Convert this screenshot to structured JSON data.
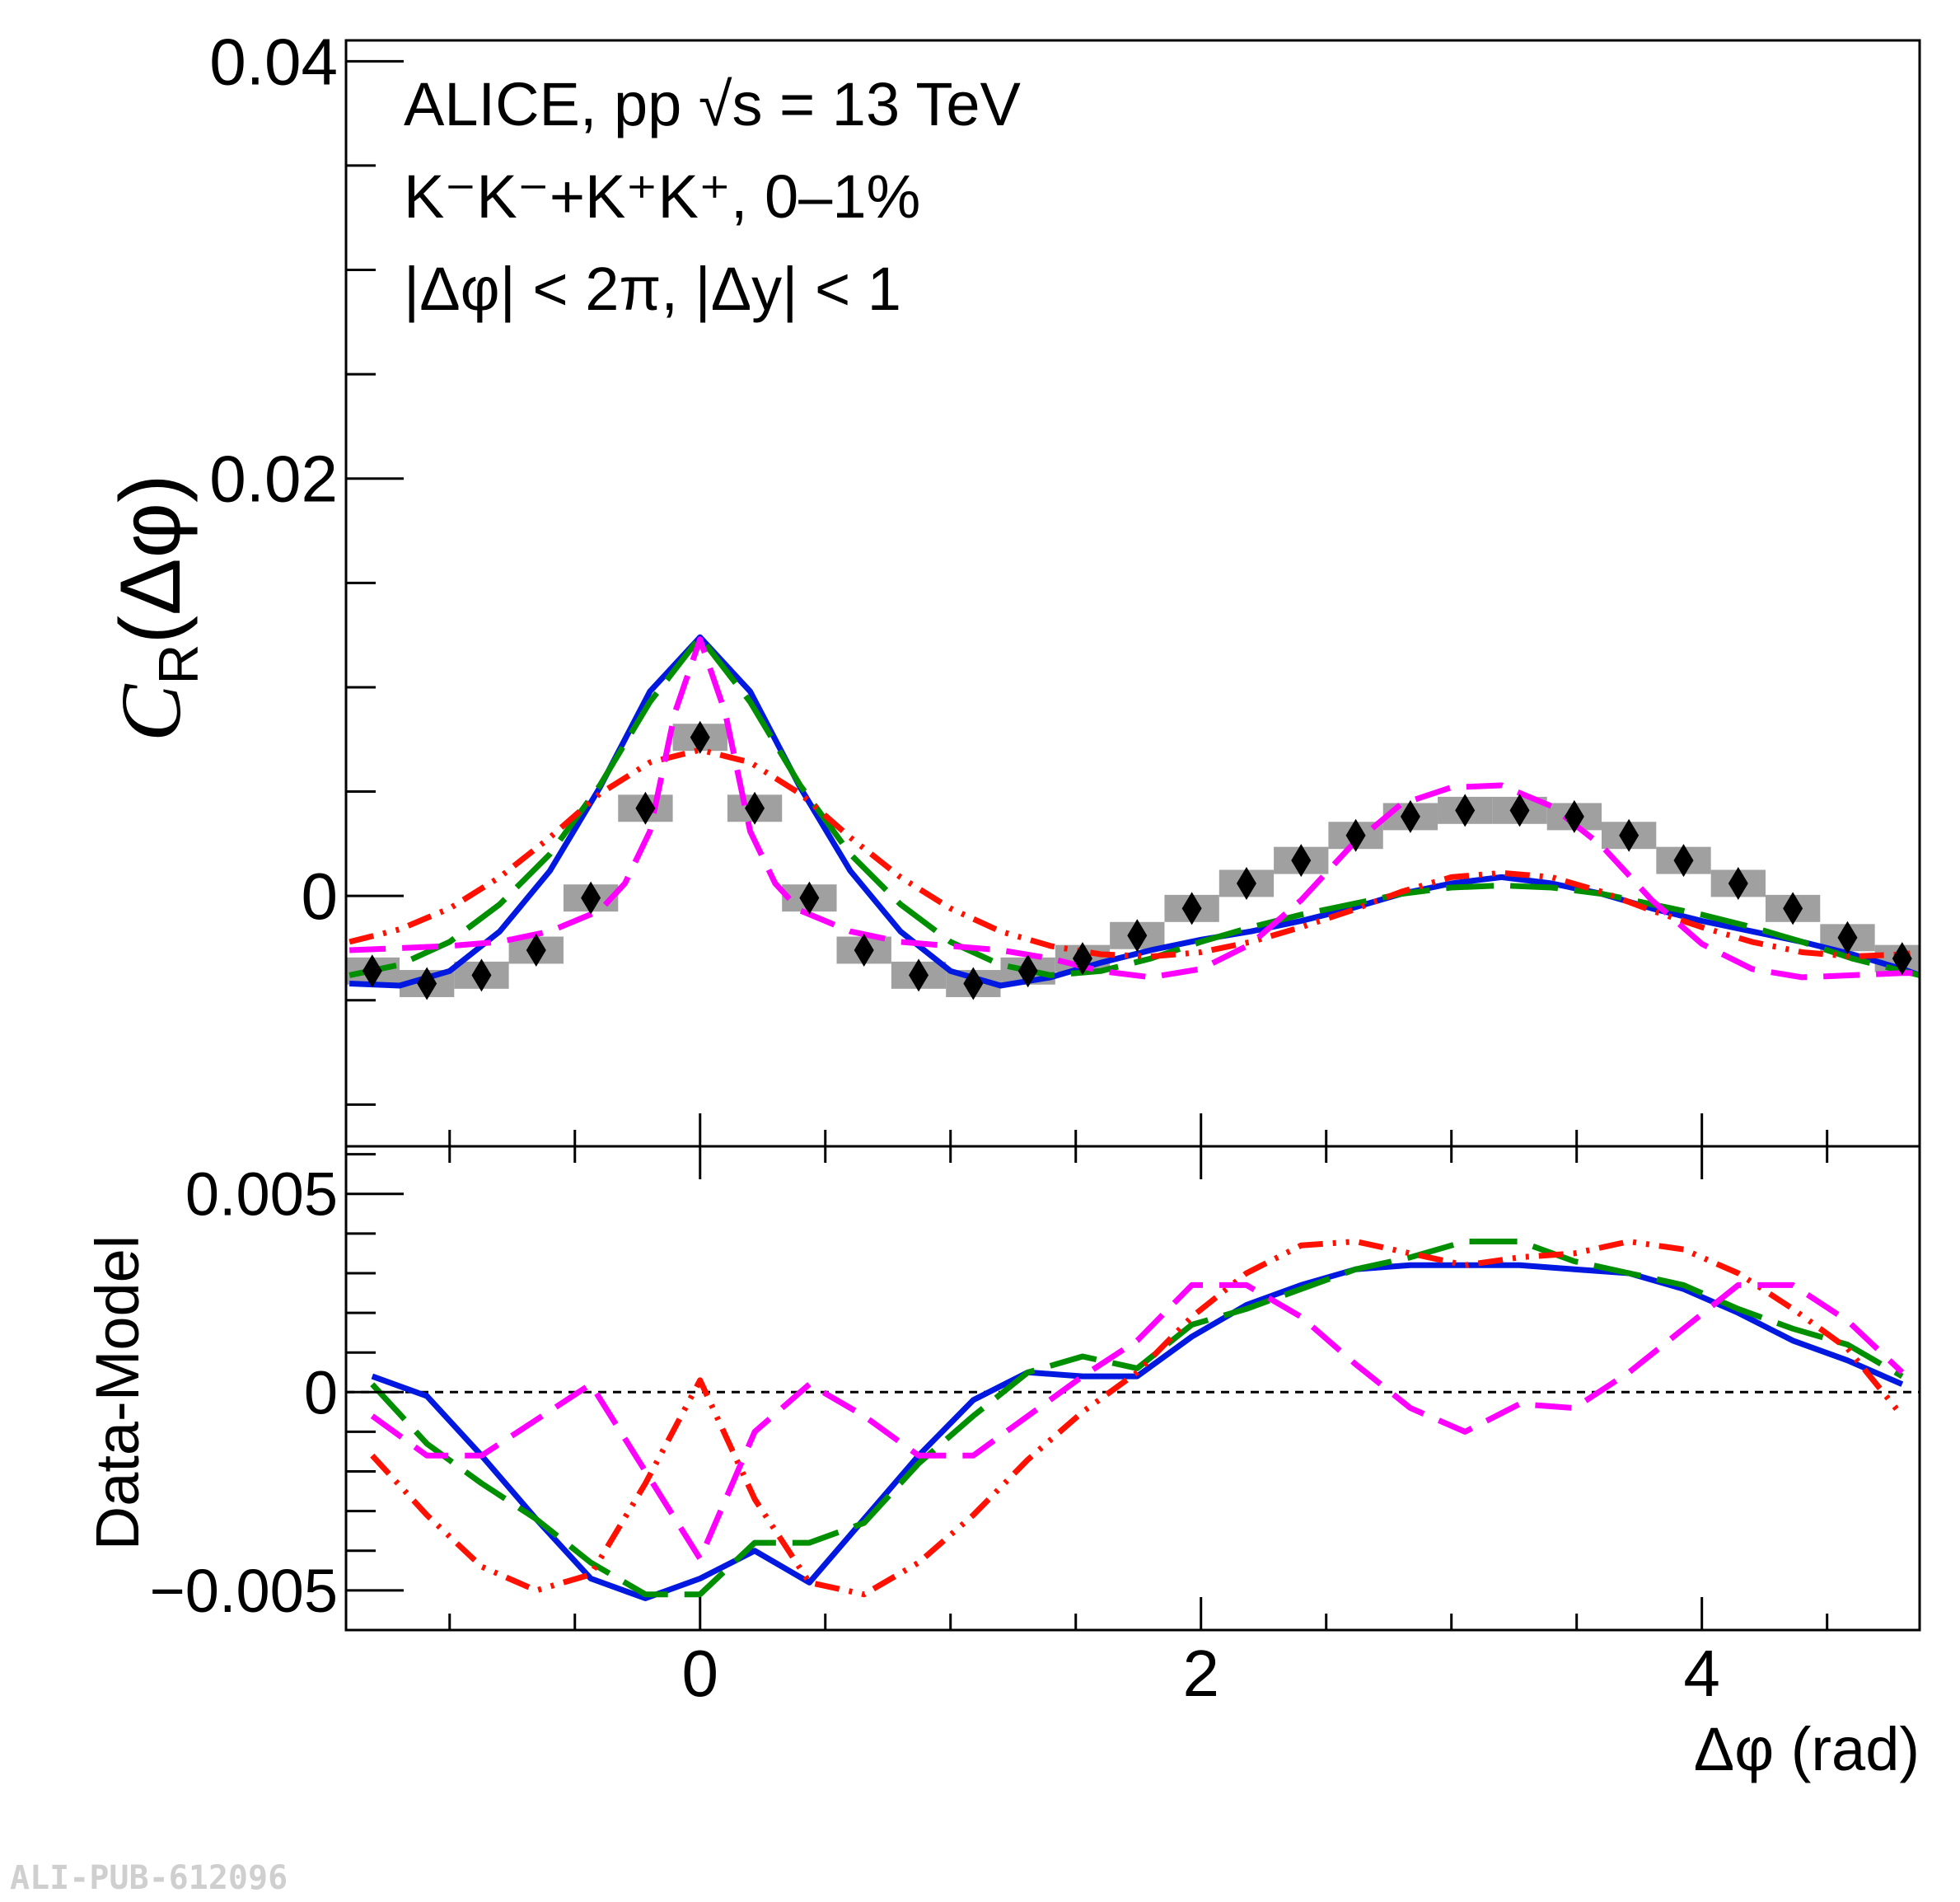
{
  "figure_id": "ALI-PUB-612096",
  "chart_data": [
    {
      "type": "scatter",
      "panel": "upper",
      "title_lines": [
        "ALICE, pp √s = 13 TeV",
        "K⁻K⁻+K⁺K⁺, 0–1%",
        "|Δφ| < 2π, |Δy| < 1"
      ],
      "ylabel_main": "C",
      "ylabel_sub": "R",
      "ylabel_arg": "(Δφ)",
      "xlim": [
        -1.4137,
        4.8695
      ],
      "ylim": [
        -0.012,
        0.041
      ],
      "y_ticks": [
        0.04,
        0.02,
        0
      ],
      "y_tick_labels": [
        "0.04",
        "0.02",
        "0"
      ],
      "x_ticks": [
        0,
        2,
        4
      ],
      "data_points": {
        "x": [
          -1.309,
          -1.0908,
          -0.8727,
          -0.6545,
          -0.4363,
          -0.2182,
          0.0,
          0.2182,
          0.4363,
          0.6545,
          0.8727,
          1.0908,
          1.309,
          1.5272,
          1.7453,
          1.9635,
          2.1817,
          2.3998,
          2.618,
          2.8362,
          3.0543,
          3.2725,
          3.4907,
          3.7088,
          3.927,
          4.1452,
          4.3633,
          4.5815,
          4.7997
        ],
        "y": [
          -0.0036,
          -0.0042,
          -0.0038,
          -0.0026,
          -0.0001,
          0.0042,
          0.0076,
          0.0042,
          -0.0001,
          -0.0026,
          -0.0038,
          -0.0042,
          -0.0036,
          -0.003,
          -0.0019,
          -0.0006,
          0.0006,
          0.0017,
          0.0029,
          0.0038,
          0.0041,
          0.0041,
          0.0038,
          0.0029,
          0.0017,
          0.0006,
          -0.0006,
          -0.002,
          -0.003
        ],
        "sys_err": [
          0.0013,
          0.0013,
          0.0013,
          0.0013,
          0.0013,
          0.0013,
          0.0013,
          0.0013,
          0.0013,
          0.0013,
          0.0013,
          0.0013,
          0.0013,
          0.0013,
          0.0013,
          0.0013,
          0.0013,
          0.0013,
          0.0013,
          0.0013,
          0.0013,
          0.0013,
          0.0013,
          0.0013,
          0.0013,
          0.0013,
          0.0013,
          0.0013,
          0.0013
        ]
      },
      "series": [
        {
          "color": "#0018e0",
          "dash": "solid",
          "x": [
            -1.4,
            -1.2,
            -1.0,
            -0.8,
            -0.6,
            -0.4,
            -0.2,
            0.0,
            0.2,
            0.4,
            0.6,
            0.8,
            1.0,
            1.2,
            1.4,
            1.6,
            1.8,
            2.0,
            2.2,
            2.4,
            2.6,
            2.8,
            3.0,
            3.2,
            3.4,
            3.6,
            3.8,
            4.0,
            4.2,
            4.4,
            4.6,
            4.8,
            4.87
          ],
          "y": [
            -0.0042,
            -0.0043,
            -0.0036,
            -0.0017,
            0.0012,
            0.0052,
            0.0098,
            0.0124,
            0.0098,
            0.0052,
            0.0012,
            -0.0017,
            -0.0036,
            -0.0043,
            -0.0039,
            -0.0032,
            -0.0026,
            -0.0021,
            -0.0017,
            -0.0012,
            -0.0006,
            0.0001,
            0.0006,
            0.0009,
            0.0006,
            0.0001,
            -0.0006,
            -0.0012,
            -0.0017,
            -0.0022,
            -0.0028,
            -0.0035,
            -0.0038
          ]
        },
        {
          "color": "#008f00",
          "dash": "longdash",
          "x": [
            -1.4,
            -1.2,
            -1.0,
            -0.8,
            -0.6,
            -0.4,
            -0.2,
            0.0,
            0.2,
            0.4,
            0.6,
            0.8,
            1.0,
            1.2,
            1.4,
            1.6,
            1.8,
            2.0,
            2.2,
            2.4,
            2.6,
            2.8,
            3.0,
            3.2,
            3.4,
            3.6,
            3.8,
            4.0,
            4.2,
            4.4,
            4.6,
            4.8,
            4.87
          ],
          "y": [
            -0.0038,
            -0.0033,
            -0.0022,
            -0.0004,
            0.002,
            0.0053,
            0.0093,
            0.0124,
            0.0093,
            0.0053,
            0.002,
            -0.0004,
            -0.0022,
            -0.0033,
            -0.0038,
            -0.0036,
            -0.003,
            -0.0022,
            -0.0015,
            -0.0009,
            -0.0004,
            0.0001,
            0.0004,
            0.0005,
            0.0004,
            0.0001,
            -0.0004,
            -0.0009,
            -0.0015,
            -0.0022,
            -0.003,
            -0.0036,
            -0.0038
          ]
        },
        {
          "color": "#ff1000",
          "dash": "dashdotdot",
          "x": [
            -1.4,
            -1.2,
            -1.0,
            -0.8,
            -0.6,
            -0.4,
            -0.2,
            0.0,
            0.2,
            0.4,
            0.6,
            0.8,
            1.0,
            1.2,
            1.4,
            1.6,
            1.8,
            2.0,
            2.2,
            2.4,
            2.6,
            2.8,
            3.0,
            3.2,
            3.4,
            3.6,
            3.8,
            4.0,
            4.2,
            4.4,
            4.6,
            4.8,
            4.87
          ],
          "y": [
            -0.0022,
            -0.0016,
            -0.0006,
            0.0009,
            0.0028,
            0.0049,
            0.0064,
            0.007,
            0.0064,
            0.0049,
            0.0028,
            0.0009,
            -0.0006,
            -0.0017,
            -0.0024,
            -0.0028,
            -0.0029,
            -0.0027,
            -0.0022,
            -0.0015,
            -0.0007,
            0.0002,
            0.0009,
            0.0011,
            0.0009,
            0.0002,
            -0.0007,
            -0.0015,
            -0.0022,
            -0.0027,
            -0.0029,
            -0.0028,
            -0.0027
          ]
        },
        {
          "color": "#ff00ff",
          "dash": "dash",
          "x": [
            -1.4,
            -1.2,
            -1.0,
            -0.8,
            -0.6,
            -0.4,
            -0.3,
            -0.2,
            -0.1,
            0.0,
            0.1,
            0.2,
            0.3,
            0.4,
            0.6,
            0.8,
            1.0,
            1.2,
            1.4,
            1.6,
            1.8,
            2.0,
            2.2,
            2.4,
            2.6,
            2.8,
            3.0,
            3.2,
            3.4,
            3.6,
            3.8,
            4.0,
            4.2,
            4.4,
            4.6,
            4.8,
            4.87
          ],
          "y": [
            -0.0026,
            -0.0025,
            -0.0024,
            -0.0022,
            -0.0017,
            -0.0007,
            0.0006,
            0.0031,
            0.0088,
            0.0123,
            0.0088,
            0.0031,
            0.0006,
            -0.0007,
            -0.0017,
            -0.0022,
            -0.0024,
            -0.0026,
            -0.003,
            -0.0036,
            -0.0039,
            -0.0035,
            -0.0023,
            -0.0002,
            0.0024,
            0.0044,
            0.0052,
            0.0053,
            0.0043,
            0.0024,
            -0.0002,
            -0.0023,
            -0.0035,
            -0.0039,
            -0.0038,
            -0.0037,
            -0.0037
          ]
        }
      ]
    },
    {
      "type": "line",
      "panel": "lower",
      "ylabel": "Data-Model",
      "xlabel": "Δφ (rad)",
      "xlim": [
        -1.4137,
        4.8695
      ],
      "ylim": [
        -0.006,
        0.0062
      ],
      "y_ticks": [
        0.005,
        0,
        -0.005
      ],
      "y_tick_labels": [
        "0.005",
        "0",
        "−0.005"
      ],
      "x_ticks": [
        0,
        2,
        4
      ],
      "x_tick_labels": [
        "0",
        "2",
        "4"
      ],
      "reference_line": 0,
      "series": [
        {
          "color": "#0018e0",
          "dash": "solid",
          "x": [
            -1.309,
            -1.0908,
            -0.8727,
            -0.6545,
            -0.4363,
            -0.2182,
            0.0,
            0.2182,
            0.4363,
            0.6545,
            0.8727,
            1.0908,
            1.309,
            1.5272,
            1.7453,
            1.9635,
            2.1817,
            2.3998,
            2.618,
            2.8362,
            3.0543,
            3.2725,
            3.4907,
            3.7088,
            3.927,
            4.1452,
            4.3633,
            4.5815,
            4.7997
          ],
          "y": [
            0.0004,
            -0.0001,
            -0.0016,
            -0.0032,
            -0.0047,
            -0.0052,
            -0.0047,
            -0.004,
            -0.0048,
            -0.0032,
            -0.0016,
            -0.0002,
            0.0005,
            0.0004,
            0.0004,
            0.0014,
            0.0022,
            0.0027,
            0.0031,
            0.0032,
            0.0032,
            0.0032,
            0.0031,
            0.003,
            0.0026,
            0.002,
            0.0013,
            0.0008,
            0.0002
          ]
        },
        {
          "color": "#008f00",
          "dash": "longdash",
          "x": [
            -1.309,
            -1.0908,
            -0.8727,
            -0.6545,
            -0.4363,
            -0.2182,
            0.0,
            0.2182,
            0.4363,
            0.6545,
            0.8727,
            1.0908,
            1.309,
            1.5272,
            1.7453,
            1.9635,
            2.1817,
            2.3998,
            2.618,
            2.8362,
            3.0543,
            3.2725,
            3.4907,
            3.7088,
            3.927,
            4.1452,
            4.3633,
            4.5815,
            4.7997
          ],
          "y": [
            0.0002,
            -0.0013,
            -0.0023,
            -0.0032,
            -0.0043,
            -0.0051,
            -0.0051,
            -0.0038,
            -0.0038,
            -0.0033,
            -0.0018,
            -0.0006,
            0.0005,
            0.0009,
            0.0006,
            0.0017,
            0.0021,
            0.0026,
            0.0031,
            0.0034,
            0.0038,
            0.0038,
            0.0033,
            0.003,
            0.0027,
            0.0021,
            0.0016,
            0.0012,
            0.0004
          ]
        },
        {
          "color": "#ff1000",
          "dash": "dashdotdot",
          "x": [
            -1.309,
            -1.0908,
            -0.8727,
            -0.6545,
            -0.4363,
            -0.2182,
            0.0,
            0.2182,
            0.4363,
            0.6545,
            0.8727,
            1.0908,
            1.309,
            1.5272,
            1.7453,
            1.9635,
            2.1817,
            2.3998,
            2.618,
            2.8362,
            3.0543,
            3.2725,
            3.4907,
            3.7088,
            3.927,
            4.1452,
            4.3633,
            4.5815,
            4.7997
          ],
          "y": [
            -0.0016,
            -0.0031,
            -0.0044,
            -0.005,
            -0.0046,
            -0.0023,
            0.0003,
            -0.0027,
            -0.0048,
            -0.0051,
            -0.0043,
            -0.0031,
            -0.0017,
            -0.0005,
            0.0005,
            0.0019,
            0.003,
            0.0037,
            0.0038,
            0.0035,
            0.0032,
            0.0034,
            0.0035,
            0.0038,
            0.0036,
            0.003,
            0.0021,
            0.0011,
            -0.0006
          ]
        },
        {
          "color": "#ff00ff",
          "dash": "dash",
          "x": [
            -1.309,
            -1.0908,
            -0.8727,
            -0.6545,
            -0.4363,
            -0.2182,
            0.0,
            0.2182,
            0.4363,
            0.6545,
            0.8727,
            1.0908,
            1.309,
            1.5272,
            1.7453,
            1.9635,
            2.1817,
            2.3998,
            2.618,
            2.8362,
            3.0543,
            3.2725,
            3.4907,
            3.7088,
            3.927,
            4.1452,
            4.3633,
            4.5815,
            4.7997
          ],
          "y": [
            -0.0006,
            -0.0016,
            -0.0016,
            -0.0007,
            0.0002,
            -0.002,
            -0.0042,
            -0.001,
            0.0002,
            -0.0006,
            -0.0016,
            -0.0016,
            -0.0006,
            0.0004,
            0.0013,
            0.0027,
            0.0027,
            0.0019,
            0.0007,
            -0.0004,
            -0.001,
            -0.0003,
            -0.0004,
            0.0005,
            0.0016,
            0.0027,
            0.0027,
            0.0018,
            0.0005
          ]
        }
      ]
    }
  ]
}
